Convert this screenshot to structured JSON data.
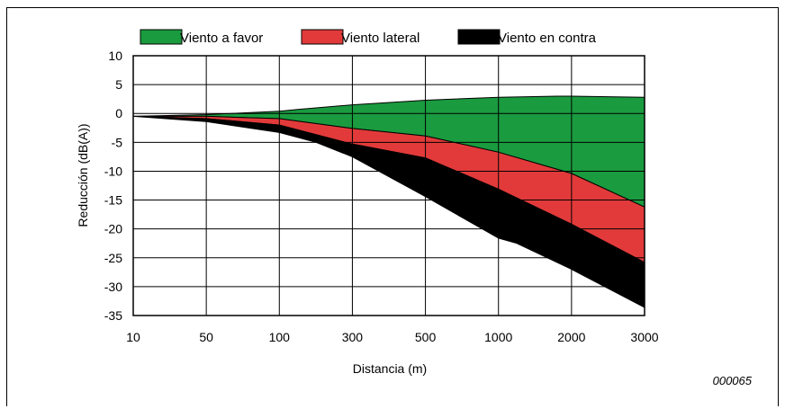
{
  "chart_data": {
    "type": "area",
    "xlabel": "Distancia (m)",
    "ylabel": "Reducción (dB(A))",
    "x_categories": [
      "10",
      "50",
      "100",
      "300",
      "500",
      "1000",
      "2000",
      "3000"
    ],
    "y_ticks": [
      10,
      5,
      0,
      -5,
      -10,
      -15,
      -20,
      -25,
      -30,
      -35
    ],
    "ylim": [
      -35,
      10
    ],
    "grid": true,
    "legend_position": "top",
    "series": [
      {
        "name": "Viento a favor",
        "color": "#1a9b3f",
        "x_index": [
          0,
          1,
          2,
          2.25,
          3,
          4,
          5,
          5.8,
          6,
          7
        ],
        "y": [
          -0.5,
          -0.2,
          0.4,
          0.7,
          1.5,
          2.3,
          2.8,
          3.0,
          3.0,
          2.8
        ]
      },
      {
        "name": "Viento lateral",
        "color": "#e23a3a",
        "x_index": [
          0,
          1,
          2,
          3,
          4,
          5,
          6,
          7
        ],
        "y": [
          -0.5,
          -0.5,
          -0.9,
          -2.6,
          -3.9,
          -6.7,
          -10.4,
          -16.2
        ]
      },
      {
        "name": "Viento en contra",
        "color": "#000000",
        "x_index": [
          0,
          1,
          2,
          3,
          4,
          5,
          6,
          7
        ],
        "y": [
          -0.5,
          -0.9,
          -2.0,
          -5.3,
          -7.7,
          -13.1,
          -19.2,
          -25.8
        ]
      }
    ],
    "lower_bound": {
      "x_index": [
        0,
        1,
        2,
        2.5,
        3,
        4,
        5,
        5.25,
        6,
        7
      ],
      "y": [
        -0.5,
        -1.4,
        -3.3,
        -5.0,
        -7.5,
        -14.4,
        -21.6,
        -22.5,
        -27.0,
        -33.6
      ]
    }
  },
  "figure_code": "000065"
}
